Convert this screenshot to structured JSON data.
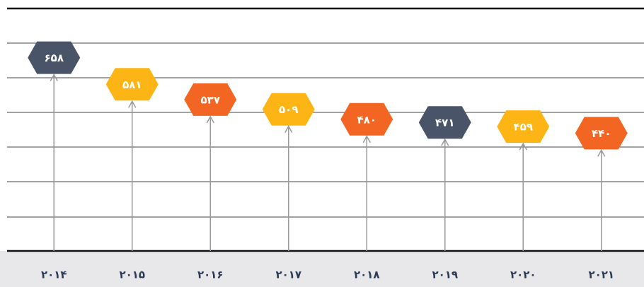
{
  "chart_data": {
    "type": "lollipop",
    "categories": [
      "۲۰۱۴",
      "۲۰۱۵",
      "۲۰۱۶",
      "۲۰۱۷",
      "۲۰۱۸",
      "۲۰۱۹",
      "۲۰۲۰",
      "۲۰۲۱"
    ],
    "values": [
      658,
      581,
      537,
      509,
      480,
      471,
      459,
      440
    ],
    "value_labels": [
      "۶۵۸",
      "۵۸۱",
      "۵۳۷",
      "۵۰۹",
      "۴۸۰",
      "۴۷۱",
      "۴۵۹",
      "۴۴۰"
    ],
    "colors": [
      "#4a5468",
      "#fdb515",
      "#f26522",
      "#fdb515",
      "#f26522",
      "#4a5468",
      "#fdb515",
      "#f26522"
    ],
    "ylim": [
      100,
      800
    ]
  }
}
